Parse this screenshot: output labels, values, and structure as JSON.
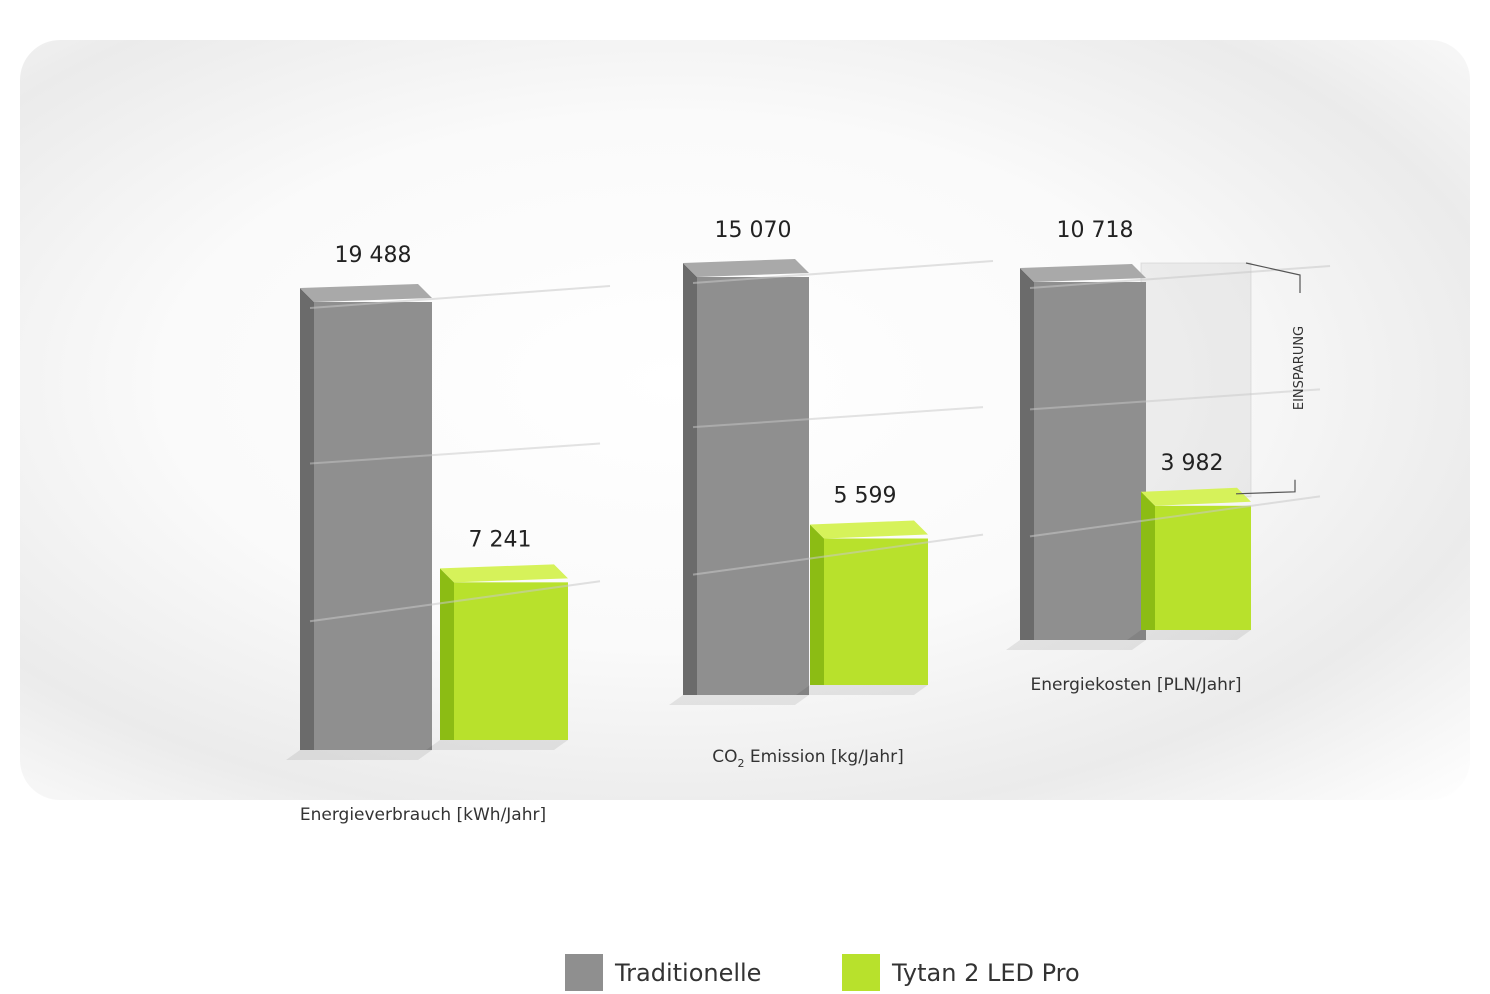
{
  "colors": {
    "traditional": "#8f8f8f",
    "traditional_top": "#a9a9a9",
    "traditional_side": "#6b6b6b",
    "led": "#b8e12c",
    "led_top": "#d6f25a",
    "led_side": "#8cbc14"
  },
  "chart_data": [
    {
      "type": "bar",
      "title": "",
      "categories": [
        "Energieverbrauch [kWh/Jahr]"
      ],
      "series": [
        {
          "name": "Traditionelle",
          "values": [
            19488
          ]
        },
        {
          "name": "Tytan 2 LED Pro",
          "values": [
            7241
          ]
        }
      ],
      "data_labels": [
        "19 488",
        "7 241"
      ],
      "xlabel": "Energieverbrauch [kWh/Jahr]",
      "ylabel": ""
    },
    {
      "type": "bar",
      "title": "",
      "categories": [
        "CO2 Emission [kg/Jahr]"
      ],
      "series": [
        {
          "name": "Traditionelle",
          "values": [
            15070
          ]
        },
        {
          "name": "Tytan 2 LED Pro",
          "values": [
            5599
          ]
        }
      ],
      "data_labels": [
        "15 070",
        "5 599"
      ],
      "xlabel_main": "CO",
      "xlabel_sub": "2",
      "xlabel_rest": " Emission [kg/Jahr]",
      "ylabel": ""
    },
    {
      "type": "bar",
      "title": "",
      "categories": [
        "Energiekosten [PLN/Jahr]"
      ],
      "series": [
        {
          "name": "Traditionelle",
          "values": [
            10718
          ]
        },
        {
          "name": "Tytan 2 LED Pro",
          "values": [
            3982
          ]
        }
      ],
      "data_labels": [
        "10 718",
        "3 982"
      ],
      "xlabel": "Energiekosten [PLN/Jahr]",
      "annotation": "EINSPARUNG",
      "ylabel": ""
    }
  ],
  "legend": [
    {
      "label": "Traditionelle"
    },
    {
      "label": "Tytan 2 LED Pro"
    }
  ]
}
